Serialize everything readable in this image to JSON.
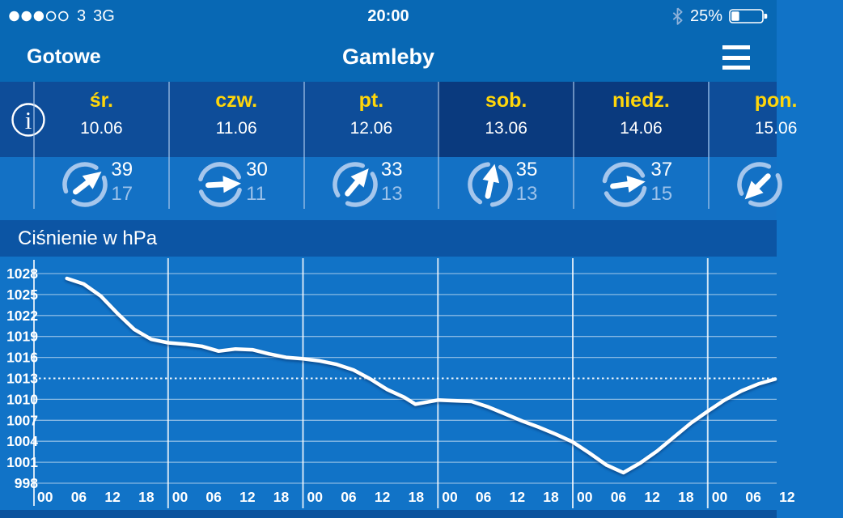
{
  "status_bar": {
    "carrier": "3",
    "network": "3G",
    "time": "20:00",
    "battery_percent": "25%",
    "battery_level": 0.25,
    "signal_filled_dots": 3,
    "signal_total_dots": 5
  },
  "nav_bar": {
    "done_label": "Gotowe",
    "title": "Gamleby",
    "menu_icon": "hamburger-menu"
  },
  "forecast": {
    "info_icon": "i",
    "days": [
      {
        "name": "śr.",
        "date": "10.06",
        "weekend": false,
        "wind_max": "39",
        "wind_min": "17",
        "wind_dir_deg": -38
      },
      {
        "name": "czw.",
        "date": "11.06",
        "weekend": false,
        "wind_max": "30",
        "wind_min": "11",
        "wind_dir_deg": -3
      },
      {
        "name": "pt.",
        "date": "12.06",
        "weekend": false,
        "wind_max": "33",
        "wind_min": "13",
        "wind_dir_deg": -50
      },
      {
        "name": "sob.",
        "date": "13.06",
        "weekend": true,
        "wind_max": "35",
        "wind_min": "13",
        "wind_dir_deg": -78
      },
      {
        "name": "niedz.",
        "date": "14.06",
        "weekend": true,
        "wind_max": "37",
        "wind_min": "15",
        "wind_dir_deg": -8
      },
      {
        "name": "pon.",
        "date": "15.06",
        "weekend": false,
        "wind_max": "",
        "wind_min": "",
        "wind_dir_deg": 135
      }
    ]
  },
  "section": {
    "title": "Ciśnienie w hPa"
  },
  "chart_data": {
    "type": "line",
    "title": "Ciśnienie w hPa",
    "ylabel": "hPa",
    "ylim": [
      998,
      1028
    ],
    "yticks": [
      1028,
      1025,
      1022,
      1019,
      1016,
      1013,
      1010,
      1007,
      1004,
      1001,
      998
    ],
    "reference_value": 1013,
    "grid": true,
    "x_unit": "hours",
    "hours_per_day": 24,
    "visible_days": 5.5,
    "day_tick_labels": [
      "00",
      "06",
      "12",
      "18"
    ],
    "series": [
      {
        "name": "pressure_hpa",
        "points": [
          [
            6,
            1027.3
          ],
          [
            9,
            1026.5
          ],
          [
            12,
            1024.8
          ],
          [
            15,
            1022.3
          ],
          [
            18,
            1020.0
          ],
          [
            21,
            1018.6
          ],
          [
            24,
            1018.1
          ],
          [
            27,
            1017.9
          ],
          [
            30,
            1017.6
          ],
          [
            33,
            1016.9
          ],
          [
            36,
            1017.2
          ],
          [
            39,
            1017.1
          ],
          [
            42,
            1016.5
          ],
          [
            45,
            1016.0
          ],
          [
            48,
            1015.8
          ],
          [
            51,
            1015.5
          ],
          [
            54,
            1015.0
          ],
          [
            57,
            1014.2
          ],
          [
            60,
            1012.9
          ],
          [
            63,
            1011.4
          ],
          [
            66,
            1010.3
          ],
          [
            68,
            1009.3
          ],
          [
            72,
            1009.9
          ],
          [
            75,
            1009.8
          ],
          [
            78,
            1009.7
          ],
          [
            81,
            1008.9
          ],
          [
            84,
            1007.9
          ],
          [
            87,
            1006.9
          ],
          [
            90,
            1006.0
          ],
          [
            93,
            1005.0
          ],
          [
            96,
            1003.9
          ],
          [
            99,
            1002.3
          ],
          [
            102,
            1000.6
          ],
          [
            105,
            999.5
          ],
          [
            108,
            1000.9
          ],
          [
            111,
            1002.6
          ],
          [
            114,
            1004.6
          ],
          [
            117,
            1006.6
          ],
          [
            120,
            1008.3
          ],
          [
            123,
            1009.9
          ],
          [
            126,
            1011.2
          ],
          [
            129,
            1012.2
          ],
          [
            132,
            1012.9
          ]
        ]
      }
    ]
  },
  "colors": {
    "status_nav_bg": "#0868b4",
    "day_row_bg": "#0e4d99",
    "weekend_bg": "#0a3a7e",
    "wind_row_bg": "#1371c5",
    "section_bg": "#0c55a4",
    "chart_bg": "#1173c7",
    "bottom_bar_bg": "#0b539e",
    "day_name": "#ffd60a",
    "wind_secondary": "#9cc2ea",
    "compass_ring": "#a5c6ec",
    "bluetooth": "#8fb2da",
    "separator": "rgba(170,200,235,0.6)",
    "grid_line": "rgba(255,255,255,0.5)",
    "day_grid_line": "rgba(255,255,255,0.8)",
    "pressure_line": "#ffffff"
  }
}
